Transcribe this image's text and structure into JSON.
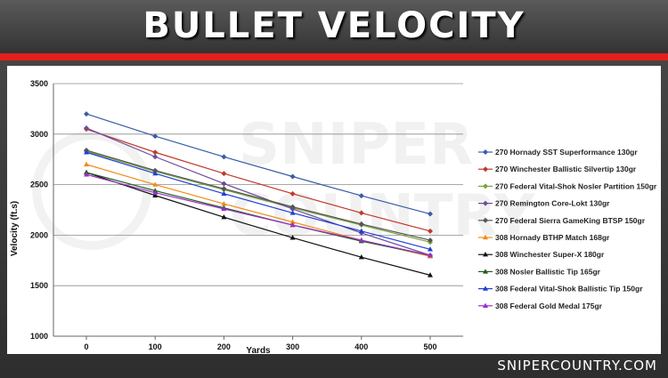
{
  "header": {
    "title": "BULLET VELOCITY"
  },
  "footer": {
    "brand": "SNIPERCOUNTRY.COM"
  },
  "watermark": {
    "line1": "SNIPER",
    "line2": "COUNTRY"
  },
  "colors": {
    "accent_bar": "#e4201b"
  },
  "chart_data": {
    "type": "line",
    "title": "",
    "xlabel": "Yards",
    "ylabel": "Velocity (ft.s)",
    "x": [
      0,
      100,
      200,
      300,
      400,
      500
    ],
    "xlim": [
      0,
      500
    ],
    "ylim": [
      1000,
      3500
    ],
    "yticks": [
      1000,
      1500,
      2000,
      2500,
      3000,
      3500
    ],
    "grid": "horizontal",
    "legend_position": "right",
    "series": [
      {
        "name": "270 Hornady SST Superformance 130gr",
        "color": "#3b5ba5",
        "marker": "diamond",
        "values": [
          3200,
          2980,
          2775,
          2580,
          2390,
          2210
        ]
      },
      {
        "name": "270 Winchester Ballistic Silvertip 130gr",
        "color": "#c0392b",
        "marker": "diamond",
        "values": [
          3050,
          2820,
          2610,
          2410,
          2220,
          2040
        ]
      },
      {
        "name": "270 Federal Vital-Shok Nosler Partition 150gr",
        "color": "#7aa33c",
        "marker": "diamond",
        "values": [
          2830,
          2630,
          2450,
          2270,
          2100,
          1930
        ]
      },
      {
        "name": "270 Remington Core-Lokt 130gr",
        "color": "#6b4c9a",
        "marker": "diamond",
        "values": [
          3060,
          2776,
          2510,
          2259,
          2022,
          1801
        ]
      },
      {
        "name": "270 Federal Sierra GameKing BTSP 150gr",
        "color": "#555555",
        "marker": "diamond",
        "values": [
          2840,
          2640,
          2460,
          2280,
          2110,
          1950
        ]
      },
      {
        "name": "308 Hornady BTHP Match 168gr",
        "color": "#f08c1a",
        "marker": "triangle",
        "values": [
          2700,
          2500,
          2310,
          2130,
          1950,
          1790
        ]
      },
      {
        "name": "308 Winchester Super-X 180gr",
        "color": "#111111",
        "marker": "triangle",
        "values": [
          2620,
          2393,
          2178,
          1974,
          1782,
          1604
        ]
      },
      {
        "name": "308 Nosler Ballistic Tip 165gr",
        "color": "#1e5b1e",
        "marker": "triangle",
        "values": [
          2620,
          2440,
          2270,
          2100,
          1940,
          1800
        ]
      },
      {
        "name": "308 Federal Vital-Shok Ballistic Tip 150gr",
        "color": "#1f3fd6",
        "marker": "triangle",
        "values": [
          2820,
          2610,
          2410,
          2220,
          2040,
          1860
        ]
      },
      {
        "name": "308 Federal Gold Medal 175gr",
        "color": "#9b2fc9",
        "marker": "triangle",
        "values": [
          2600,
          2420,
          2260,
          2100,
          1950,
          1800
        ]
      }
    ]
  }
}
